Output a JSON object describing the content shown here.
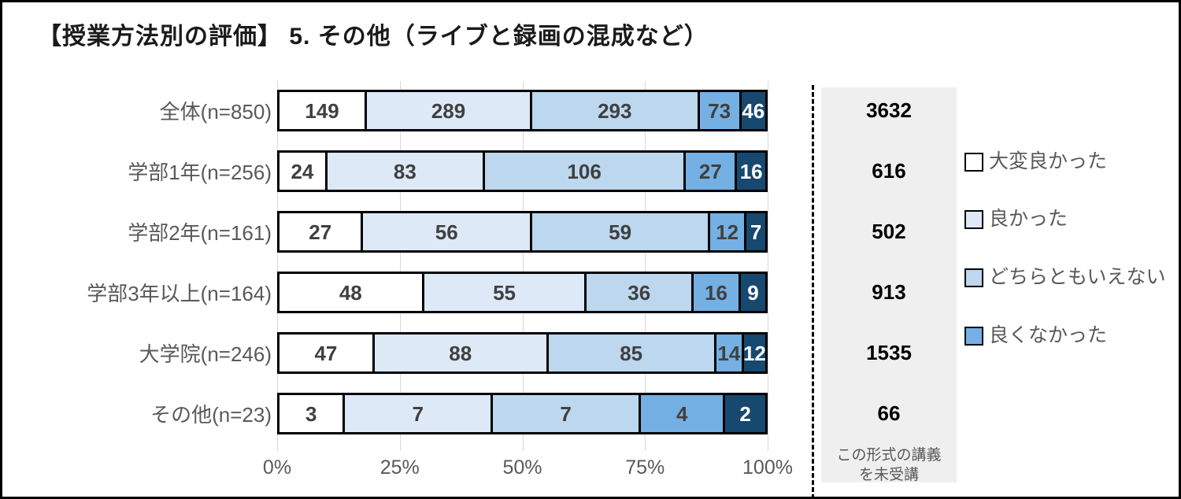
{
  "title": "【授業方法別の評価】 5. その他（ライブと録画の混成など）",
  "chart_data": {
    "type": "bar",
    "stacked": true,
    "orientation": "horizontal",
    "percent_axis": true,
    "grid": true,
    "categories": [
      "全体(n=850)",
      "学部1年(n=256)",
      "学部2年(n=161)",
      "学部3年以上(n=164)",
      "大学院(n=246)",
      "その他(n=23)"
    ],
    "category_totals": [
      850,
      256,
      161,
      164,
      246,
      23
    ],
    "series": [
      {
        "name": "大変良かった",
        "color": "#ffffff",
        "label_color": "#404040",
        "values": [
          149,
          24,
          27,
          48,
          47,
          3
        ]
      },
      {
        "name": "良かった",
        "color": "#dde9f6",
        "label_color": "#404040",
        "values": [
          289,
          83,
          56,
          55,
          88,
          7
        ]
      },
      {
        "name": "どちらともいえない",
        "color": "#bcd7ee",
        "label_color": "#404040",
        "values": [
          293,
          106,
          59,
          36,
          85,
          7
        ]
      },
      {
        "name": "良くなかった",
        "color": "#74b0e3",
        "label_color": "#404040",
        "values": [
          73,
          27,
          12,
          16,
          14,
          4
        ]
      },
      {
        "name": "",
        "color": "#17486f",
        "label_color": "#ffffff",
        "values": [
          46,
          16,
          7,
          9,
          12,
          2
        ]
      }
    ],
    "x_ticks": [
      "0%",
      "25%",
      "50%",
      "75%",
      "100%"
    ],
    "xlim": [
      0,
      100
    ],
    "legend_position": "right",
    "legend_visible_entries": [
      "大変良かった",
      "良かった",
      "どちらともいえない",
      "良くなかった"
    ]
  },
  "side_panel": {
    "values": [
      "3632",
      "616",
      "502",
      "913",
      "1535",
      "66"
    ],
    "caption": "この形式の講義を未受講"
  },
  "colors": {
    "grid_line": "#d9d9d9",
    "axis_text": "#595959",
    "category_text": "#595959",
    "panel_bg": "#efefef",
    "bar_border": "#000000",
    "dark_segment": "#17486f"
  }
}
